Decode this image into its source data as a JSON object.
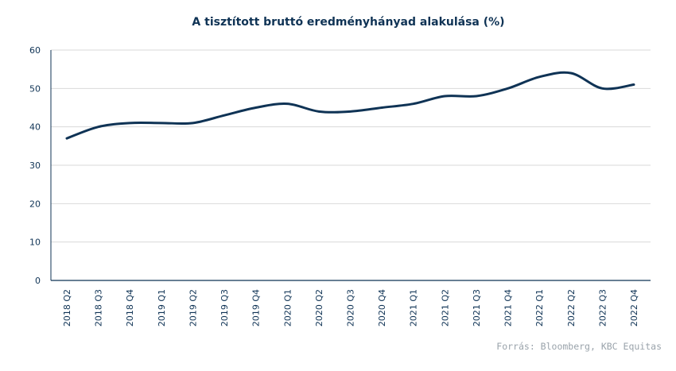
{
  "chart_data": {
    "type": "line",
    "title": "A tisztított bruttó eredményhányad  alakulása (%)",
    "source": "Forrás: Bloomberg,  KBC Equitas",
    "categories": [
      "2018 Q2",
      "2018 Q3",
      "2018 Q4",
      "2019 Q1",
      "2019 Q2",
      "2019 Q3",
      "2019 Q4",
      "2020 Q1",
      "2020 Q2",
      "2020 Q3",
      "2020 Q4",
      "2021 Q1",
      "2021 Q2",
      "2021 Q3",
      "2021 Q4",
      "2022 Q1",
      "2022 Q2",
      "2022 Q3",
      "2022 Q4"
    ],
    "series": [
      {
        "values": [
          37,
          40,
          41,
          41,
          41,
          43,
          45,
          46,
          44,
          44,
          45,
          46,
          48,
          48,
          50,
          53,
          54,
          50,
          51
        ]
      }
    ],
    "ylim": [
      0,
      60
    ],
    "yticks": [
      "0",
      "10",
      "20",
      "30",
      "40",
      "50",
      "60"
    ],
    "grid": true,
    "line_color": "#0f3355"
  }
}
